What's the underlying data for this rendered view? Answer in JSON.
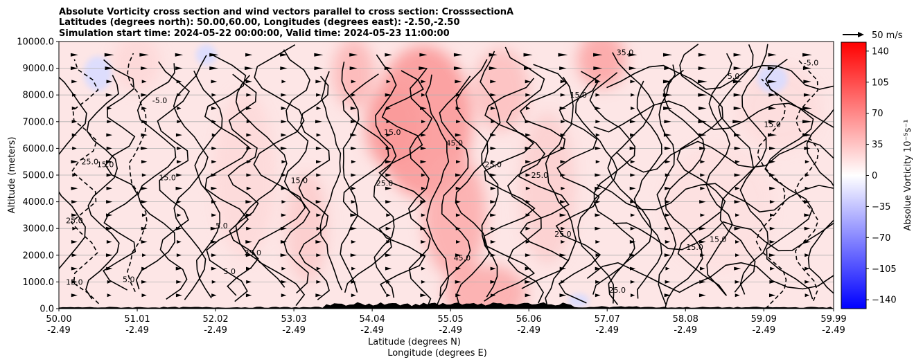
{
  "chart_data": {
    "type": "heatmap",
    "title_lines": [
      "Absolute Vorticity cross section and wind vectors parallel to cross section: CrosssectionA",
      "Latitudes (degrees north): 50.00,60.00, Longitudes (degrees east): -2.50,-2.50",
      "Simulation start time: 2024-05-22 00:00:00, Valid time: 2024-05-23 11:00:00"
    ],
    "xlabel_lines": [
      "Latitude (degrees N)",
      "Longitude (degrees E)"
    ],
    "ylabel": "Altitude (meters)",
    "x_ticks": [
      {
        "lat": "50.00",
        "lon": "-2.49"
      },
      {
        "lat": "51.01",
        "lon": "-2.49"
      },
      {
        "lat": "52.02",
        "lon": "-2.49"
      },
      {
        "lat": "53.03",
        "lon": "-2.49"
      },
      {
        "lat": "54.04",
        "lon": "-2.49"
      },
      {
        "lat": "55.05",
        "lon": "-2.49"
      },
      {
        "lat": "56.06",
        "lon": "-2.49"
      },
      {
        "lat": "57.07",
        "lon": "-2.49"
      },
      {
        "lat": "58.08",
        "lon": "-2.49"
      },
      {
        "lat": "59.09",
        "lon": "-2.49"
      },
      {
        "lat": "59.99",
        "lon": "-2.49"
      }
    ],
    "x_range": [
      50.0,
      59.99
    ],
    "y_ticks": [
      "0.0",
      "1000.0",
      "2000.0",
      "3000.0",
      "4000.0",
      "5000.0",
      "6000.0",
      "7000.0",
      "8000.0",
      "9000.0",
      "10000.0"
    ],
    "y_range": [
      0,
      10000
    ],
    "horizontal_grid": true,
    "colorbar": {
      "label": "Absolue Vorticity 10⁻⁵s⁻¹",
      "ticks": [
        "140",
        "105",
        "70",
        "35",
        "0",
        "−35",
        "−70",
        "−105",
        "−140"
      ],
      "range": [
        -150,
        150
      ],
      "colormap": "bwr",
      "color_low": "#0000ff",
      "color_mid": "#ffffff",
      "color_high": "#ff0000"
    },
    "contour_levels": [
      "-5.0",
      "5.0",
      "15.0",
      "25.0",
      "35.0",
      "45.0"
    ],
    "contour_labels": [
      {
        "text": "25.0",
        "lat": 50.2,
        "alt": 3200
      },
      {
        "text": "15.0",
        "lat": 50.2,
        "alt": 900
      },
      {
        "text": "5.0",
        "lat": 50.9,
        "alt": 1000
      },
      {
        "text": "-5.0",
        "lat": 51.3,
        "alt": 7700
      },
      {
        "text": "15.0",
        "lat": 50.6,
        "alt": 5300
      },
      {
        "text": "25.0",
        "lat": 50.4,
        "alt": 5400
      },
      {
        "text": "15.0",
        "lat": 51.4,
        "alt": 4800
      },
      {
        "text": "5.0",
        "lat": 52.1,
        "alt": 3000
      },
      {
        "text": "25.0",
        "lat": 52.5,
        "alt": 2000
      },
      {
        "text": "5.0",
        "lat": 52.2,
        "alt": 1300
      },
      {
        "text": "15.0",
        "lat": 53.1,
        "alt": 4700
      },
      {
        "text": "25.0",
        "lat": 54.2,
        "alt": 4600
      },
      {
        "text": "45.0",
        "lat": 55.1,
        "alt": 6100
      },
      {
        "text": "25.0",
        "lat": 55.6,
        "alt": 5300
      },
      {
        "text": "25.0",
        "lat": 56.2,
        "alt": 4900
      },
      {
        "text": "25.0",
        "lat": 56.5,
        "alt": 2700
      },
      {
        "text": "15.0",
        "lat": 54.3,
        "alt": 6500
      },
      {
        "text": "15.0",
        "lat": 56.7,
        "alt": 7900
      },
      {
        "text": "35.0",
        "lat": 57.3,
        "alt": 9500
      },
      {
        "text": "15.0",
        "lat": 58.2,
        "alt": 2200
      },
      {
        "text": "15.0",
        "lat": 58.5,
        "alt": 2500
      },
      {
        "text": "5.0",
        "lat": 58.7,
        "alt": 8600
      },
      {
        "text": "-5.0",
        "lat": 59.7,
        "alt": 9100
      },
      {
        "text": "15.0",
        "lat": 59.2,
        "alt": 6800
      },
      {
        "text": "45.0",
        "lat": 55.2,
        "alt": 1800
      },
      {
        "text": "25.0",
        "lat": 57.2,
        "alt": 600
      }
    ],
    "wind_vectors": {
      "reference_label": "50 m/s",
      "direction_note": "parallel to cross section"
    },
    "terrain": "black filled orography along the bottom edge"
  }
}
